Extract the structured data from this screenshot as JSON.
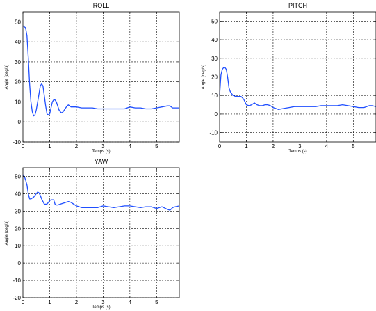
{
  "chart_data": [
    {
      "type": "line",
      "title": "ROLL",
      "xlabel": "Temps (s)",
      "ylabel": "Angle  (deg/s)",
      "xlim": [
        0,
        5.85
      ],
      "ylim": [
        -10,
        55
      ],
      "xticks": [
        0,
        1,
        2,
        3,
        4,
        5
      ],
      "yticks": [
        -10,
        0,
        10,
        20,
        30,
        40,
        50
      ],
      "grid": true,
      "color": "#1f4fff",
      "series": [
        {
          "x": [
            0,
            0.05,
            0.1,
            0.15,
            0.2,
            0.25,
            0.3,
            0.35,
            0.4,
            0.45,
            0.5,
            0.55,
            0.6,
            0.65,
            0.7,
            0.75,
            0.8,
            0.85,
            0.9,
            0.95,
            1.0,
            1.05,
            1.1,
            1.15,
            1.2,
            1.25,
            1.3,
            1.35,
            1.4,
            1.45,
            1.5,
            1.55,
            1.6,
            1.65,
            1.7,
            1.75,
            1.8,
            1.85,
            1.9,
            2.0,
            2.2,
            2.4,
            2.6,
            2.8,
            3.0,
            3.2,
            3.4,
            3.6,
            3.8,
            3.9,
            4.0,
            4.2,
            4.4,
            4.6,
            4.8,
            5.0,
            5.2,
            5.4,
            5.5,
            5.6,
            5.7,
            5.85
          ],
          "y": [
            48,
            47.5,
            47,
            43,
            32,
            19,
            10,
            5,
            3,
            3.5,
            6,
            10,
            14,
            18,
            19,
            18,
            13,
            8,
            4,
            3.5,
            4,
            7,
            10,
            11,
            11,
            10,
            8,
            6,
            5,
            4.5,
            5,
            6,
            7,
            8,
            8.5,
            8,
            7.5,
            7.5,
            7.5,
            7.5,
            7,
            7,
            7,
            6.5,
            6.5,
            6.5,
            6.5,
            6.5,
            6.5,
            7,
            7.5,
            7,
            7,
            6.5,
            6.5,
            7,
            7.5,
            8,
            8,
            7,
            7,
            7
          ]
        }
      ]
    },
    {
      "type": "line",
      "title": "PITCH",
      "xlabel": "Temps (s)",
      "ylabel": "Angle  (deg/s)",
      "xlim": [
        0,
        5.85
      ],
      "ylim": [
        -15,
        55
      ],
      "xticks": [
        0,
        1,
        2,
        3,
        4,
        5
      ],
      "yticks": [
        -10,
        0,
        10,
        20,
        30,
        40,
        50
      ],
      "grid": true,
      "color": "#1f4fff",
      "series": [
        {
          "x": [
            0,
            0.05,
            0.1,
            0.15,
            0.2,
            0.25,
            0.3,
            0.35,
            0.4,
            0.5,
            0.6,
            0.7,
            0.8,
            0.9,
            1.0,
            1.1,
            1.2,
            1.3,
            1.4,
            1.5,
            1.6,
            1.7,
            1.8,
            1.9,
            2.0,
            2.1,
            2.2,
            2.4,
            2.6,
            2.8,
            3.0,
            3.2,
            3.4,
            3.6,
            3.8,
            4.0,
            4.2,
            4.4,
            4.6,
            4.8,
            5.0,
            5.2,
            5.4,
            5.6,
            5.7,
            5.85
          ],
          "y": [
            10,
            21,
            24,
            25,
            25,
            24,
            20,
            14,
            12,
            10,
            9.5,
            9.5,
            9.5,
            8,
            5,
            4.5,
            5,
            6,
            5,
            4.5,
            4.5,
            5,
            5,
            4.5,
            3.5,
            3,
            2.5,
            3,
            3.5,
            4,
            4,
            4,
            4,
            4,
            4.5,
            4.5,
            4.5,
            4.5,
            5,
            4.5,
            4,
            3.5,
            3.5,
            4.5,
            4.5,
            4
          ]
        }
      ]
    },
    {
      "type": "line",
      "title": "YAW",
      "xlabel": "Temps (s)",
      "ylabel": "Angle  (deg/s)",
      "xlim": [
        0,
        5.85
      ],
      "ylim": [
        -20,
        55
      ],
      "xticks": [
        0,
        1,
        2,
        3,
        4,
        5
      ],
      "yticks": [
        -20,
        -10,
        0,
        10,
        20,
        30,
        40,
        50
      ],
      "grid": true,
      "color": "#1f4fff",
      "series": [
        {
          "x": [
            0,
            0.05,
            0.1,
            0.15,
            0.2,
            0.25,
            0.3,
            0.35,
            0.4,
            0.45,
            0.5,
            0.55,
            0.6,
            0.65,
            0.7,
            0.8,
            0.9,
            1.0,
            1.05,
            1.1,
            1.15,
            1.2,
            1.25,
            1.3,
            1.4,
            1.5,
            1.6,
            1.7,
            1.8,
            1.9,
            2.0,
            2.2,
            2.4,
            2.6,
            2.8,
            3.0,
            3.2,
            3.4,
            3.6,
            3.8,
            4.0,
            4.2,
            4.4,
            4.6,
            4.8,
            5.0,
            5.2,
            5.4,
            5.5,
            5.6,
            5.7,
            5.85
          ],
          "y": [
            51,
            50,
            48,
            45,
            40,
            37,
            37,
            37.5,
            38,
            39,
            40,
            41,
            40.5,
            39,
            37,
            34,
            34,
            36,
            36.5,
            36.5,
            36.5,
            34,
            33.5,
            33.5,
            34,
            34.5,
            35,
            35.5,
            35,
            34,
            33,
            32,
            32,
            32,
            32,
            33,
            32.5,
            32,
            32.5,
            33,
            33,
            32.5,
            32,
            32.5,
            32.5,
            31.5,
            32.5,
            31,
            30.5,
            32,
            32.5,
            33
          ]
        }
      ]
    }
  ]
}
